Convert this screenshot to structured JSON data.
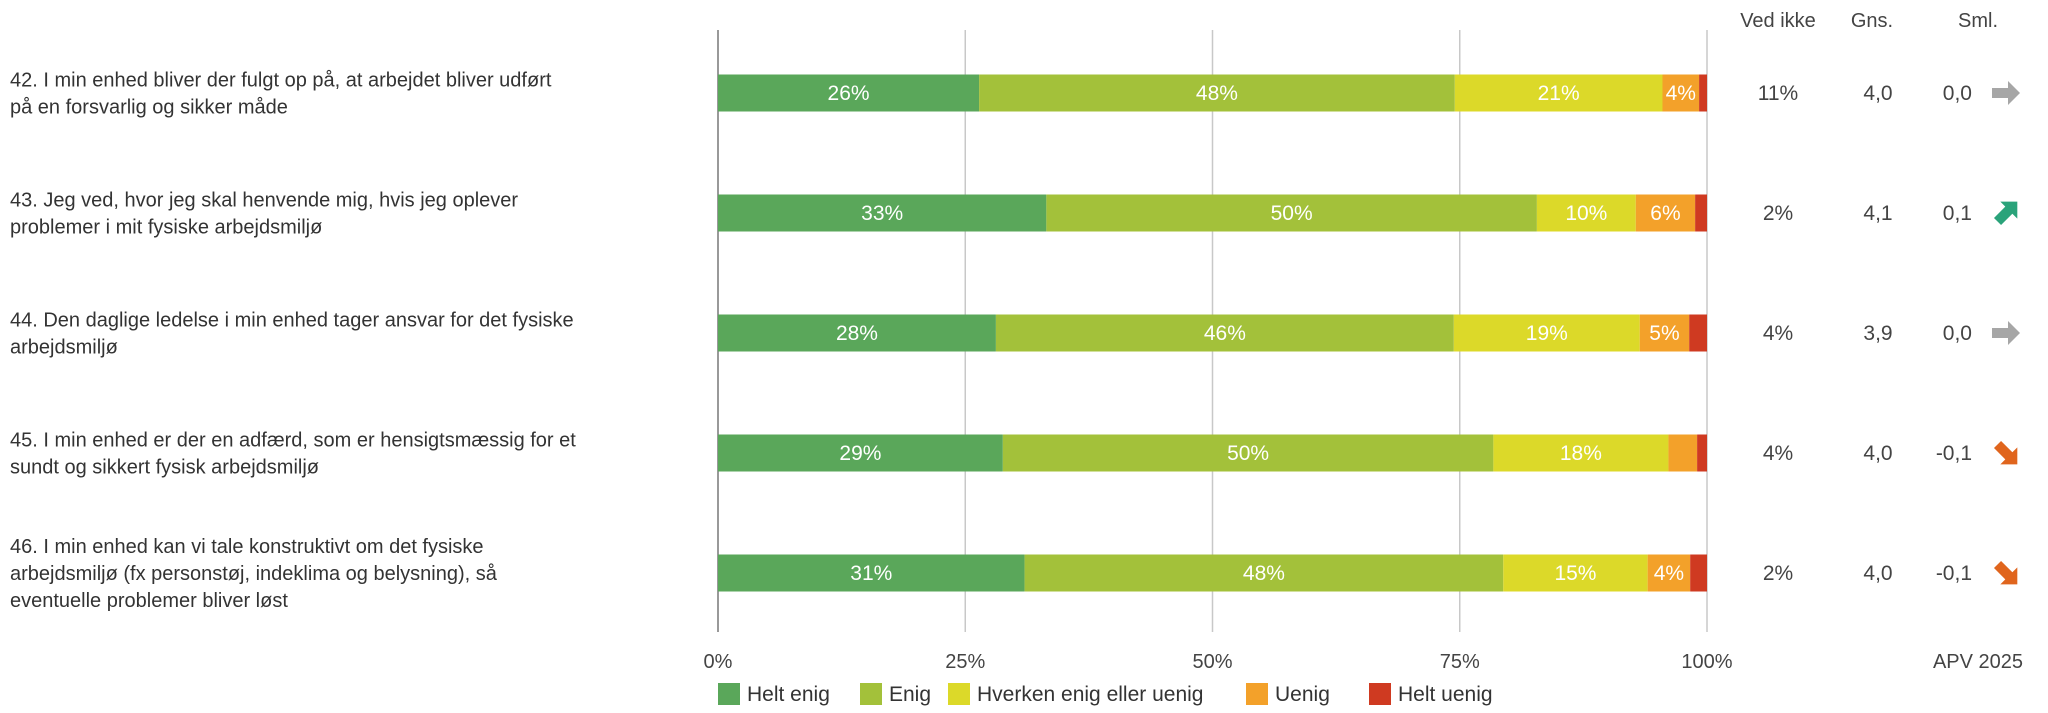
{
  "chart_data": {
    "type": "bar",
    "stacked": true,
    "orientation": "horizontal",
    "xlim": [
      0,
      100
    ],
    "x_ticks": [
      "0%",
      "25%",
      "50%",
      "75%",
      "100%"
    ],
    "grid": true,
    "legend_position": "bottom",
    "stat_headers": [
      "Ved ikke",
      "Gns.",
      "Sml."
    ],
    "footer_label": "APV 2025",
    "series": [
      {
        "name": "Helt enig",
        "color": "#5aa75a"
      },
      {
        "name": "Enig",
        "color": "#a3c13a"
      },
      {
        "name": "Hverken enig eller uenig",
        "color": "#dcd929"
      },
      {
        "name": "Uenig",
        "color": "#f3a12a"
      },
      {
        "name": "Helt uenig",
        "color": "#cf3a21"
      }
    ],
    "rows": [
      {
        "lines": [
          "42. I min enhed bliver der fulgt op på, at arbejdet bliver udført",
          "på en forsvarlig og sikker måde"
        ],
        "values": [
          26.4,
          48.1,
          21.0,
          3.7,
          0.8
        ],
        "labels": [
          "26%",
          "48%",
          "21%",
          "4%",
          ""
        ],
        "ved_ikke": "11%",
        "gns": "4,0",
        "sml": "0,0",
        "trend": "flat"
      },
      {
        "lines": [
          "43. Jeg ved, hvor jeg skal henvende mig, hvis jeg oplever",
          "problemer i mit fysiske arbejdsmiljø"
        ],
        "values": [
          33.2,
          49.6,
          10.0,
          6.0,
          1.2
        ],
        "labels": [
          "33%",
          "50%",
          "10%",
          "6%",
          ""
        ],
        "ved_ikke": "2%",
        "gns": "4,1",
        "sml": "0,1",
        "trend": "up"
      },
      {
        "lines": [
          "44. Den daglige ledelse i min enhed tager ansvar for det fysiske",
          "arbejdsmiljø"
        ],
        "values": [
          28.1,
          46.3,
          18.8,
          5.0,
          1.8
        ],
        "labels": [
          "28%",
          "46%",
          "19%",
          "5%",
          ""
        ],
        "ved_ikke": "4%",
        "gns": "3,9",
        "sml": "0,0",
        "trend": "flat"
      },
      {
        "lines": [
          "45. I min enhed er der en adfærd, som er hensigtsmæssig for et",
          "sundt og sikkert fysisk arbejdsmiljø"
        ],
        "values": [
          28.8,
          49.6,
          17.7,
          2.9,
          1.0
        ],
        "labels": [
          "29%",
          "50%",
          "18%",
          "",
          ""
        ],
        "ved_ikke": "4%",
        "gns": "4,0",
        "sml": "-0,1",
        "trend": "down"
      },
      {
        "lines": [
          "46. I min enhed kan vi tale konstruktivt om det fysiske",
          "arbejdsmiljø (fx personstøj, indeklima og belysning), så",
          "eventuelle problemer bliver løst"
        ],
        "values": [
          31.0,
          48.4,
          14.6,
          4.3,
          1.7
        ],
        "labels": [
          "31%",
          "48%",
          "15%",
          "4%",
          ""
        ],
        "ved_ikke": "2%",
        "gns": "4,0",
        "sml": "-0,1",
        "trend": "down"
      }
    ]
  }
}
